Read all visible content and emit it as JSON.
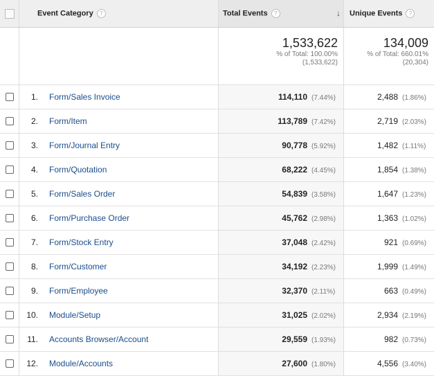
{
  "columns": {
    "category": "Event Category",
    "total": "Total Events",
    "unique": "Unique Events",
    "help": "?",
    "sort_arrow": "↓"
  },
  "summary": {
    "total_value": "1,533,622",
    "total_pct": "% of Total: 100.00%",
    "total_of": "(1,533,622)",
    "unique_value": "134,009",
    "unique_pct": "% of Total: 660.01%",
    "unique_of": "(20,304)"
  },
  "rows": [
    {
      "rank": "1.",
      "category": "Form/Sales Invoice",
      "total": "114,110",
      "total_pct": "(7.44%)",
      "unique": "2,488",
      "unique_pct": "(1.86%)"
    },
    {
      "rank": "2.",
      "category": "Form/Item",
      "total": "113,789",
      "total_pct": "(7.42%)",
      "unique": "2,719",
      "unique_pct": "(2.03%)"
    },
    {
      "rank": "3.",
      "category": "Form/Journal Entry",
      "total": "90,778",
      "total_pct": "(5.92%)",
      "unique": "1,482",
      "unique_pct": "(1.11%)"
    },
    {
      "rank": "4.",
      "category": "Form/Quotation",
      "total": "68,222",
      "total_pct": "(4.45%)",
      "unique": "1,854",
      "unique_pct": "(1.38%)"
    },
    {
      "rank": "5.",
      "category": "Form/Sales Order",
      "total": "54,839",
      "total_pct": "(3.58%)",
      "unique": "1,647",
      "unique_pct": "(1.23%)"
    },
    {
      "rank": "6.",
      "category": "Form/Purchase Order",
      "total": "45,762",
      "total_pct": "(2.98%)",
      "unique": "1,363",
      "unique_pct": "(1.02%)"
    },
    {
      "rank": "7.",
      "category": "Form/Stock Entry",
      "total": "37,048",
      "total_pct": "(2.42%)",
      "unique": "921",
      "unique_pct": "(0.69%)"
    },
    {
      "rank": "8.",
      "category": "Form/Customer",
      "total": "34,192",
      "total_pct": "(2.23%)",
      "unique": "1,999",
      "unique_pct": "(1.49%)"
    },
    {
      "rank": "9.",
      "category": "Form/Employee",
      "total": "32,370",
      "total_pct": "(2.11%)",
      "unique": "663",
      "unique_pct": "(0.49%)"
    },
    {
      "rank": "10.",
      "category": "Module/Setup",
      "total": "31,025",
      "total_pct": "(2.02%)",
      "unique": "2,934",
      "unique_pct": "(2.19%)"
    },
    {
      "rank": "11.",
      "category": "Accounts Browser/Account",
      "total": "29,559",
      "total_pct": "(1.93%)",
      "unique": "982",
      "unique_pct": "(0.73%)"
    },
    {
      "rank": "12.",
      "category": "Module/Accounts",
      "total": "27,600",
      "total_pct": "(1.80%)",
      "unique": "4,556",
      "unique_pct": "(3.40%)"
    }
  ]
}
